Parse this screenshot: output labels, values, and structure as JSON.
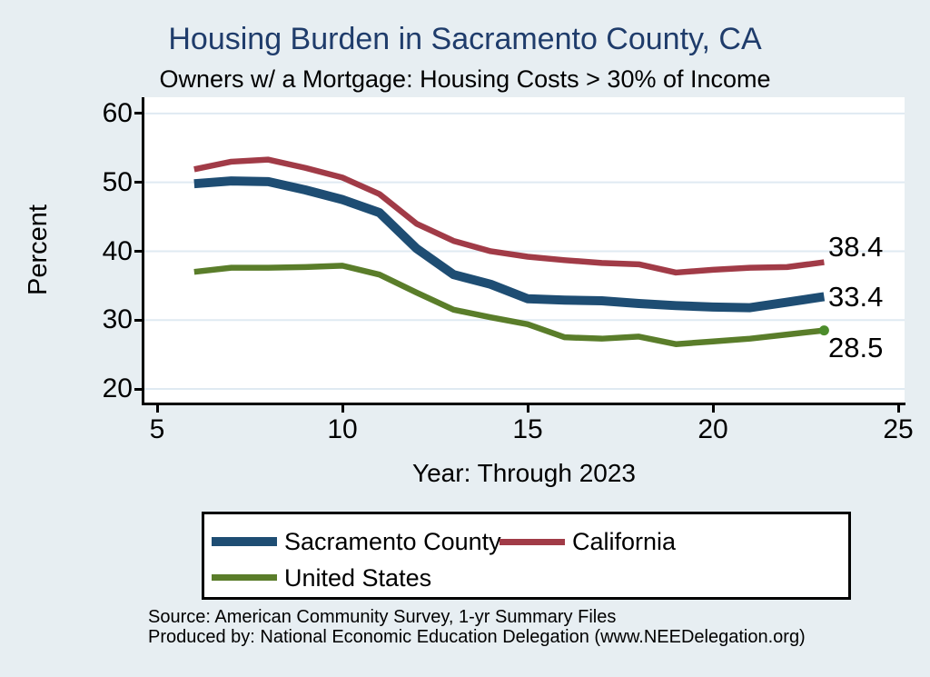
{
  "header": {
    "title": "Housing Burden in Sacramento County, CA",
    "subtitle": "Owners w/ a Mortgage: Housing Costs > 30% of Income"
  },
  "chart_data": {
    "type": "line",
    "title": "Housing Burden in Sacramento County, CA",
    "subtitle": "Owners w/ a Mortgage: Housing Costs > 30% of Income",
    "xlabel": "Year: Through 2023",
    "ylabel": "Percent",
    "xlim": [
      5,
      25
    ],
    "ylim": [
      20,
      60
    ],
    "x_ticks": [
      "5",
      "10",
      "15",
      "20",
      "25"
    ],
    "x_tick_values": [
      5,
      10,
      15,
      20,
      25
    ],
    "y_ticks": [
      "20",
      "30",
      "40",
      "50",
      "60"
    ],
    "y_tick_values": [
      20,
      30,
      40,
      50,
      60
    ],
    "grid": "horizontal",
    "legend_position": "bottom",
    "x": [
      6,
      7,
      8,
      9,
      10,
      11,
      12,
      13,
      14,
      15,
      16,
      17,
      18,
      19,
      20,
      21,
      22,
      23
    ],
    "series": [
      {
        "name": "Sacramento County",
        "color": "#1e4d73",
        "line_width": 10,
        "end_label": "33.4",
        "end_marker": false,
        "values": [
          49.8,
          50.2,
          50.1,
          48.9,
          47.5,
          45.6,
          40.4,
          36.6,
          35.2,
          33.1,
          32.9,
          32.8,
          32.4,
          32.1,
          31.9,
          31.8,
          32.6,
          33.4
        ]
      },
      {
        "name": "California",
        "color": "#a13b47",
        "line_width": 6.5,
        "end_label": "38.4",
        "end_marker": false,
        "values": [
          51.9,
          53.0,
          53.3,
          52.1,
          50.7,
          48.3,
          44.0,
          41.5,
          40.0,
          39.2,
          38.7,
          38.3,
          38.1,
          36.9,
          37.3,
          37.6,
          37.7,
          38.4
        ]
      },
      {
        "name": "United States",
        "color": "#5a7d2a",
        "line_width": 6.5,
        "end_label": "28.5",
        "end_marker": true,
        "values": [
          37.0,
          37.6,
          37.6,
          37.7,
          37.9,
          36.6,
          34.0,
          31.5,
          30.4,
          29.4,
          27.5,
          27.3,
          27.6,
          26.5,
          26.9,
          27.3,
          27.9,
          28.5
        ]
      }
    ]
  },
  "legend": {
    "items": [
      {
        "label": "Sacramento County"
      },
      {
        "label": "California"
      },
      {
        "label": "United States"
      }
    ]
  },
  "footer": {
    "source_line1": "Source: American Community Survey, 1-yr Summary Files",
    "source_line2": "Produced by: National Economic Education Delegation (www.NEEDelegation.org)"
  }
}
